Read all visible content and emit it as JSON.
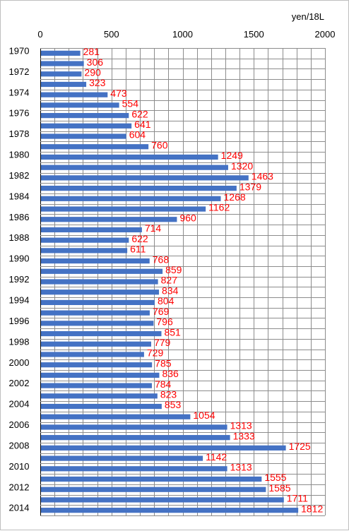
{
  "chart_data": {
    "type": "bar",
    "orientation": "horizontal",
    "unit_label": "yen/18L",
    "xlim": [
      0,
      2000
    ],
    "x_ticks": [
      0,
      500,
      1000,
      1500,
      2000
    ],
    "grid": true,
    "bar_color": "#4472c4",
    "value_label_color": "#ff0000",
    "categories": [
      "1970",
      "1971",
      "1972",
      "1973",
      "1974",
      "1975",
      "1976",
      "1977",
      "1978",
      "1979",
      "1980",
      "1981",
      "1982",
      "1983",
      "1984",
      "1985",
      "1986",
      "1987",
      "1988",
      "1989",
      "1990",
      "1991",
      "1992",
      "1993",
      "1994",
      "1995",
      "1996",
      "1997",
      "1998",
      "1999",
      "2000",
      "2001",
      "2002",
      "2003",
      "2004",
      "2005",
      "2006",
      "2007",
      "2008",
      "2009",
      "2010",
      "2011",
      "2012",
      "2013",
      "2014"
    ],
    "category_labels_shown": [
      "1970",
      "",
      "1972",
      "",
      "1974",
      "",
      "1976",
      "",
      "1978",
      "",
      "1980",
      "",
      "1982",
      "",
      "1984",
      "",
      "1986",
      "",
      "1988",
      "",
      "1990",
      "",
      "1992",
      "",
      "1994",
      "",
      "1996",
      "",
      "1998",
      "",
      "2000",
      "",
      "2002",
      "",
      "2004",
      "",
      "2006",
      "",
      "2008",
      "",
      "2010",
      "",
      "2012",
      "",
      "2014"
    ],
    "values": [
      281,
      306,
      290,
      323,
      473,
      554,
      622,
      641,
      604,
      760,
      1249,
      1320,
      1463,
      1379,
      1268,
      1162,
      960,
      714,
      622,
      611,
      768,
      859,
      827,
      834,
      804,
      769,
      796,
      851,
      779,
      729,
      785,
      836,
      784,
      823,
      853,
      1054,
      1313,
      1333,
      1725,
      1142,
      1313,
      1555,
      1585,
      1711,
      1812
    ]
  }
}
